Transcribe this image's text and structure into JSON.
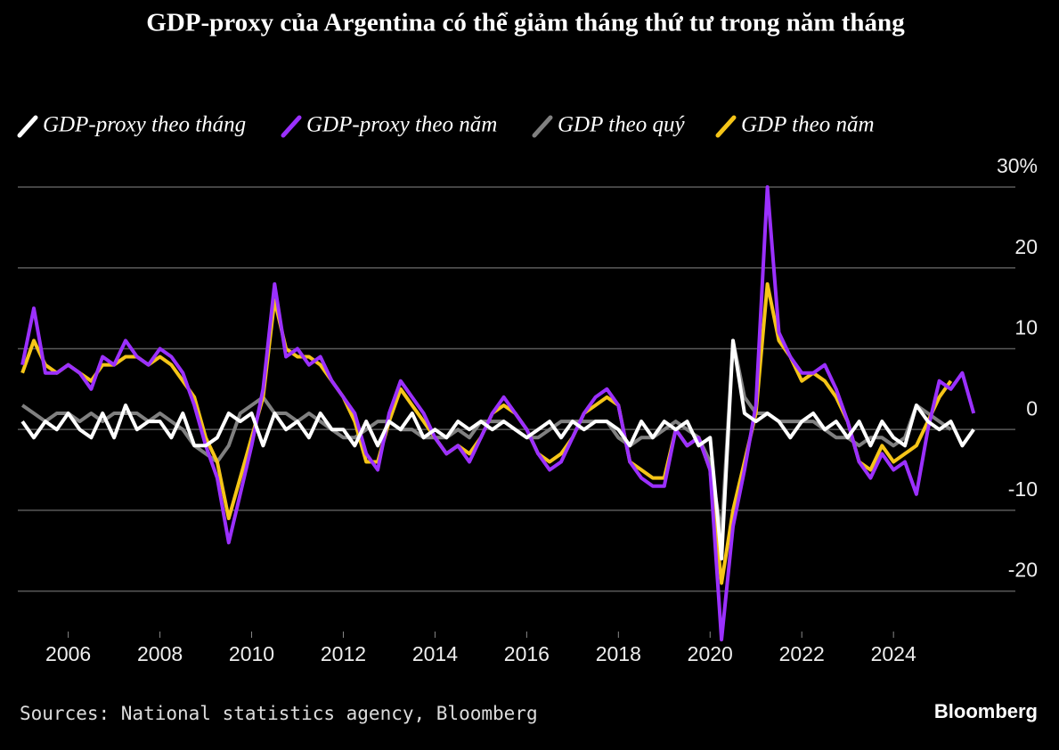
{
  "chart_data": {
    "type": "line",
    "title": "GDP-proxy của Argentina có thể giảm tháng thứ tư trong năm tháng",
    "source": "Sources: National statistics agency, Bloomberg",
    "credit": "Bloomberg",
    "x": [
      2005,
      2005.25,
      2005.5,
      2005.75,
      2006,
      2006.25,
      2006.5,
      2006.75,
      2007,
      2007.25,
      2007.5,
      2007.75,
      2008,
      2008.25,
      2008.5,
      2008.75,
      2009,
      2009.25,
      2009.5,
      2009.75,
      2010,
      2010.25,
      2010.5,
      2010.75,
      2011,
      2011.25,
      2011.5,
      2011.75,
      2012,
      2012.25,
      2012.5,
      2012.75,
      2013,
      2013.25,
      2013.5,
      2013.75,
      2014,
      2014.25,
      2014.5,
      2014.75,
      2015,
      2015.25,
      2015.5,
      2015.75,
      2016,
      2016.25,
      2016.5,
      2016.75,
      2017,
      2017.25,
      2017.5,
      2017.75,
      2018,
      2018.25,
      2018.5,
      2018.75,
      2019,
      2019.25,
      2019.5,
      2019.75,
      2020,
      2020.25,
      2020.5,
      2020.75,
      2021,
      2021.25,
      2021.5,
      2021.75,
      2022,
      2022.25,
      2022.5,
      2022.75,
      2023,
      2023.25,
      2023.5,
      2023.75,
      2024,
      2024.25,
      2024.5,
      2024.75,
      2025,
      2025.25,
      2025.5,
      2025.75
    ],
    "series": [
      {
        "name": "GDP-proxy theo tháng",
        "color": "#ffffff",
        "values": [
          1,
          -1,
          1,
          0,
          2,
          0,
          -1,
          2,
          -1,
          3,
          0,
          1,
          1,
          -1,
          2,
          -2,
          -2,
          -1,
          2,
          1,
          2,
          -2,
          2,
          0,
          1,
          -1,
          2,
          0,
          0,
          -2,
          1,
          -2,
          1,
          0,
          2,
          -1,
          0,
          -1,
          1,
          0,
          1,
          0,
          1,
          0,
          -1,
          0,
          1,
          -1,
          1,
          0,
          1,
          1,
          0,
          -2,
          1,
          -1,
          1,
          0,
          1,
          -2,
          -1,
          -16,
          11,
          2,
          1,
          2,
          1,
          -1,
          1,
          2,
          0,
          1,
          -1,
          1,
          -2,
          1,
          -1,
          -2,
          3,
          1,
          0,
          1,
          -2,
          0
        ]
      },
      {
        "name": "GDP-proxy theo năm",
        "color": "#9b30ff",
        "values": [
          8,
          15,
          7,
          7,
          8,
          7,
          5,
          9,
          8,
          11,
          9,
          8,
          10,
          9,
          7,
          3,
          -2,
          -6,
          -14,
          -8,
          -2,
          5,
          18,
          9,
          10,
          8,
          9,
          6,
          4,
          2,
          -3,
          -5,
          2,
          6,
          4,
          2,
          -1,
          -3,
          -2,
          -4,
          -1,
          2,
          4,
          2,
          0,
          -3,
          -5,
          -4,
          -1,
          2,
          4,
          5,
          3,
          -4,
          -6,
          -7,
          -7,
          0,
          -2,
          -1,
          -5,
          -26,
          -12,
          -5,
          3,
          30,
          12,
          9,
          7,
          7,
          8,
          5,
          1,
          -4,
          -6,
          -3,
          -5,
          -4,
          -8,
          0,
          6,
          5,
          7,
          2
        ]
      },
      {
        "name": "GDP theo quý",
        "color": "#808080",
        "values": [
          3,
          2,
          1,
          2,
          2,
          1,
          2,
          1,
          2,
          2,
          2,
          1,
          2,
          1,
          0,
          -2,
          -3,
          -4,
          -2,
          2,
          3,
          4,
          2,
          2,
          1,
          2,
          1,
          0,
          -1,
          -1,
          0,
          1,
          1,
          0,
          0,
          -1,
          -1,
          -1,
          0,
          -1,
          1,
          1,
          1,
          0,
          -1,
          -1,
          0,
          1,
          1,
          1,
          1,
          1,
          -1,
          -2,
          -1,
          -1,
          0,
          1,
          0,
          -1,
          -4,
          -13,
          11,
          4,
          2,
          2,
          1,
          1,
          1,
          1,
          0,
          -1,
          -1,
          -2,
          -1,
          -1,
          -2,
          -1,
          3,
          2,
          1,
          0,
          null,
          null
        ]
      },
      {
        "name": "GDP theo năm",
        "color": "#f5c518",
        "values": [
          7,
          11,
          8,
          7,
          8,
          7,
          6,
          8,
          8,
          9,
          9,
          8,
          9,
          8,
          6,
          4,
          -1,
          -4,
          -11,
          -6,
          -1,
          4,
          16,
          10,
          9,
          9,
          8,
          6,
          4,
          1,
          -4,
          -4,
          1,
          5,
          3,
          1,
          -1,
          -3,
          -2,
          -3,
          -1,
          2,
          3,
          2,
          0,
          -3,
          -4,
          -3,
          -1,
          2,
          3,
          4,
          3,
          -4,
          -5,
          -6,
          -6,
          0,
          -2,
          -1,
          -5,
          -19,
          -10,
          -4,
          2,
          18,
          11,
          9,
          6,
          7,
          6,
          4,
          1,
          -4,
          -5,
          -2,
          -4,
          -3,
          -2,
          1,
          4,
          6,
          null,
          null
        ]
      }
    ],
    "xlim": [
      2004.9,
      2026.6
    ],
    "xticks": [
      2006,
      2008,
      2010,
      2012,
      2014,
      2016,
      2018,
      2020,
      2022,
      2024
    ],
    "ylim": [
      -25,
      30
    ],
    "yticks": [
      -20,
      -10,
      0,
      10,
      {
        "value": 30,
        "label": "30%"
      },
      20
    ],
    "grid": true
  }
}
